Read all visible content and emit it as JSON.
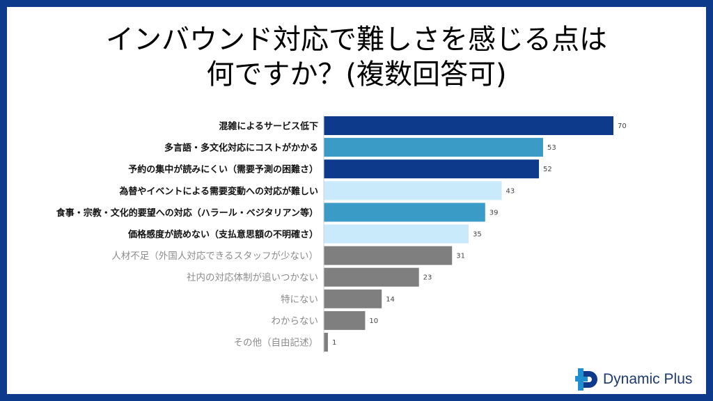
{
  "title": {
    "line1": "インバウンド対応で難しさを感じる点は",
    "line2": "何ですか？(複数回答可)"
  },
  "brand": {
    "name": "Dynamic Plus"
  },
  "colors": {
    "background_frame": "#0e3a8c",
    "dark_blue": "#0e3a8c",
    "mid_blue": "#399bc6",
    "light_blue": "#c8eafb",
    "gray": "#7f7f7f",
    "label_dark": "#111111",
    "label_gray": "#8c8c8c"
  },
  "chart_data": {
    "type": "bar",
    "orientation": "horizontal",
    "categories": [
      "混雑によるサービス低下",
      "多言語・多文化対応にコストがかかる",
      "予約の集中が読みにくい（需要予測の困難さ）",
      "為替やイベントによる需要変動への対応が難しい",
      "食事・宗教・文化的要望への対応（ハラール・ベジタリアン等）",
      "価格感度が読めない（支払意思額の不明確さ）",
      "人材不足（外国人対応できるスタッフが少ない）",
      "社内の対応体制が追いつかない",
      "特にない",
      "わからない",
      "その他（自由記述）"
    ],
    "values": [
      70,
      53,
      52,
      43,
      39,
      35,
      31,
      23,
      14,
      10,
      1
    ],
    "bar_colors": [
      "dark_blue",
      "mid_blue",
      "dark_blue",
      "light_blue",
      "mid_blue",
      "light_blue",
      "gray",
      "gray",
      "gray",
      "gray",
      "gray"
    ],
    "label_styles": [
      "bold",
      "bold",
      "bold",
      "bold",
      "bold",
      "bold",
      "gray",
      "gray",
      "gray",
      "gray",
      "gray"
    ],
    "xlim": [
      0,
      70
    ],
    "grid": false,
    "legend": "none",
    "data_labels": true
  }
}
